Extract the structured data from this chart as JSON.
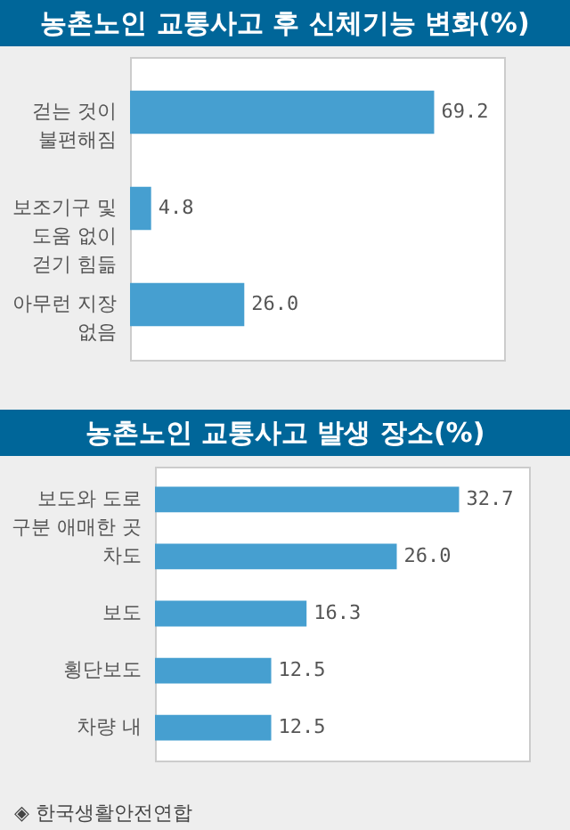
{
  "chart_data": [
    {
      "type": "bar",
      "orientation": "horizontal",
      "title": "농촌노인 교통사고 후 신체기능 변화(%)",
      "categories": [
        "걷는 것이\n불편해짐",
        "보조기구 및\n도움 없이\n걷기 힘듦",
        "아무런 지장\n없음"
      ],
      "values": [
        69.2,
        4.8,
        26.0
      ],
      "value_labels": [
        "69.2",
        "4.8",
        "26.0"
      ],
      "colors": [
        "#469fd0",
        "#469fd0",
        "#469fd0"
      ]
    },
    {
      "type": "bar",
      "orientation": "horizontal",
      "title": "농촌노인 교통사고 발생 장소(%)",
      "categories": [
        "보도와 도로\n구분 애매한 곳",
        "차도",
        "보도",
        "횡단보도",
        "차량 내"
      ],
      "values": [
        32.7,
        26.0,
        16.3,
        12.5,
        12.5
      ],
      "value_labels": [
        "32.7",
        "26.0",
        "16.3",
        "12.5",
        "12.5"
      ],
      "colors": [
        "#469fd0",
        "#469fd0",
        "#469fd0",
        "#469fd0",
        "#469fd0"
      ],
      "annotations": [
        "◈ 한국생활안전연합"
      ]
    }
  ]
}
